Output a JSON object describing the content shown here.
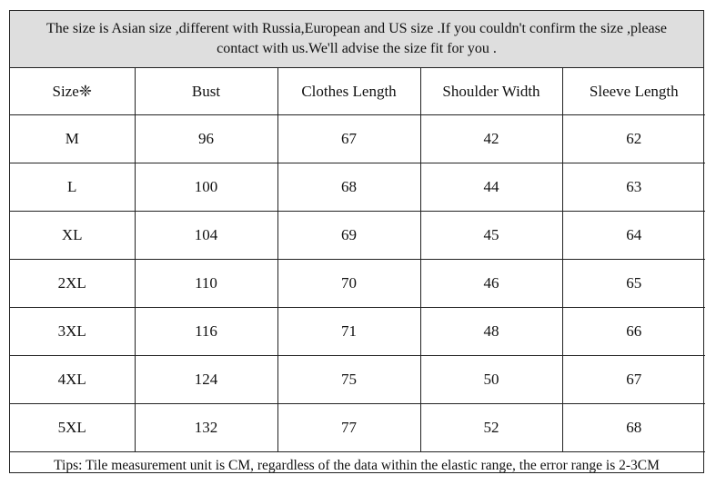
{
  "notice": {
    "line1": "The size is Asian size ,different with Russia,European and US size .If you couldn't confirm the size ,please",
    "line2": "contact with us.We'll advise the size fit for you ."
  },
  "table": {
    "headers": [
      "Size❈",
      "Bust",
      "Clothes Length",
      "Shoulder Width",
      "Sleeve Length"
    ],
    "rows": [
      [
        "M",
        "96",
        "67",
        "42",
        "62"
      ],
      [
        "L",
        "100",
        "68",
        "44",
        "63"
      ],
      [
        "XL",
        "104",
        "69",
        "45",
        "64"
      ],
      [
        "2XL",
        "110",
        "70",
        "46",
        "65"
      ],
      [
        "3XL",
        "116",
        "71",
        "48",
        "66"
      ],
      [
        "4XL",
        "124",
        "75",
        "50",
        "67"
      ],
      [
        "5XL",
        "132",
        "77",
        "52",
        "68"
      ]
    ]
  },
  "tips": "Tips: Tile measurement unit is CM, regardless of the data within the elastic range, the error range is 2-3CM",
  "colors": {
    "notice_background": "#dedede",
    "border": "#222222",
    "text": "#111111"
  }
}
